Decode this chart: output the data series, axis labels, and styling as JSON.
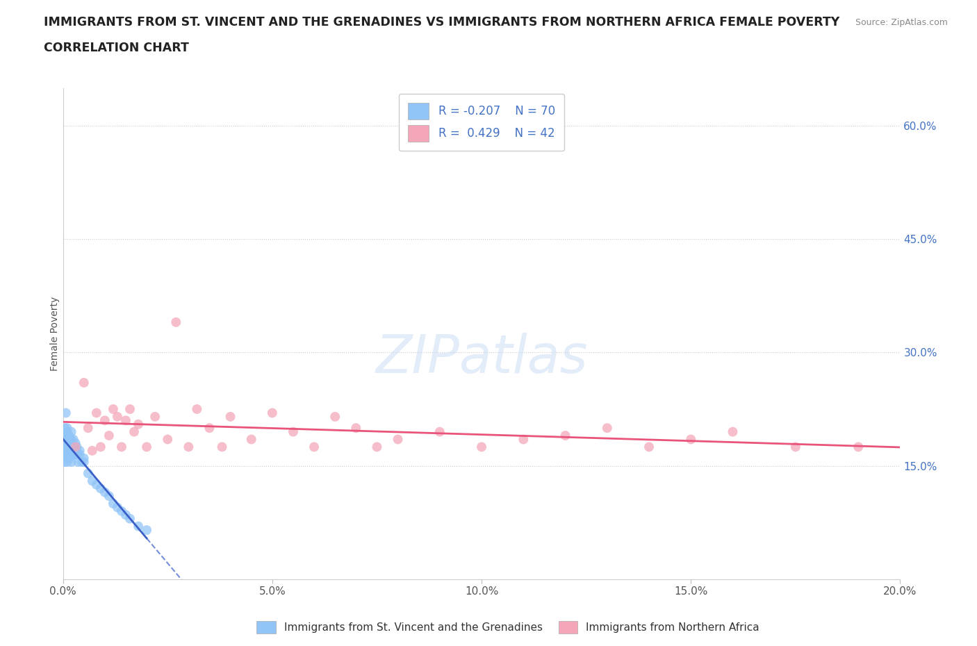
{
  "title_line1": "IMMIGRANTS FROM ST. VINCENT AND THE GRENADINES VS IMMIGRANTS FROM NORTHERN AFRICA FEMALE POVERTY",
  "title_line2": "CORRELATION CHART",
  "source": "Source: ZipAtlas.com",
  "ylabel": "Female Poverty",
  "xlim": [
    0.0,
    0.2
  ],
  "ylim": [
    0.0,
    0.65
  ],
  "xticks": [
    0.0,
    0.05,
    0.1,
    0.15,
    0.2
  ],
  "xtick_labels": [
    "0.0%",
    "5.0%",
    "10.0%",
    "15.0%",
    "20.0%"
  ],
  "ytick_labels": [
    "15.0%",
    "30.0%",
    "45.0%",
    "60.0%"
  ],
  "ytick_values": [
    0.15,
    0.3,
    0.45,
    0.6
  ],
  "hlines": [
    0.15,
    0.3,
    0.45,
    0.6
  ],
  "series1_color": "#92C5F7",
  "series2_color": "#F4A7B9",
  "series1_label": "Immigrants from St. Vincent and the Grenadines",
  "series2_label": "Immigrants from Northern Africa",
  "R1": -0.207,
  "N1": 70,
  "R2": 0.429,
  "N2": 42,
  "trend1_color": "#3A5FC8",
  "trend2_color": "#E8547A",
  "watermark": "ZIPatlas",
  "series1_x": [
    0.0002,
    0.0003,
    0.0004,
    0.0005,
    0.0005,
    0.0006,
    0.0006,
    0.0007,
    0.0007,
    0.0008,
    0.0008,
    0.0009,
    0.0009,
    0.001,
    0.001,
    0.001,
    0.001,
    0.001,
    0.001,
    0.0012,
    0.0012,
    0.0013,
    0.0013,
    0.0014,
    0.0014,
    0.0015,
    0.0015,
    0.0016,
    0.0016,
    0.0017,
    0.0017,
    0.0018,
    0.0018,
    0.0019,
    0.002,
    0.002,
    0.002,
    0.002,
    0.0022,
    0.0022,
    0.0024,
    0.0024,
    0.0025,
    0.0026,
    0.0027,
    0.0028,
    0.003,
    0.003,
    0.0032,
    0.0033,
    0.0035,
    0.0036,
    0.004,
    0.004,
    0.0045,
    0.005,
    0.005,
    0.006,
    0.007,
    0.008,
    0.009,
    0.01,
    0.011,
    0.012,
    0.013,
    0.014,
    0.015,
    0.016,
    0.018,
    0.02
  ],
  "series1_y": [
    0.175,
    0.165,
    0.155,
    0.2,
    0.17,
    0.185,
    0.16,
    0.22,
    0.18,
    0.19,
    0.17,
    0.165,
    0.175,
    0.185,
    0.195,
    0.2,
    0.175,
    0.165,
    0.155,
    0.18,
    0.17,
    0.185,
    0.175,
    0.19,
    0.175,
    0.16,
    0.17,
    0.175,
    0.185,
    0.17,
    0.175,
    0.165,
    0.18,
    0.165,
    0.175,
    0.185,
    0.195,
    0.155,
    0.175,
    0.17,
    0.165,
    0.175,
    0.185,
    0.175,
    0.165,
    0.175,
    0.18,
    0.165,
    0.17,
    0.175,
    0.165,
    0.155,
    0.17,
    0.165,
    0.155,
    0.16,
    0.155,
    0.14,
    0.13,
    0.125,
    0.12,
    0.115,
    0.11,
    0.1,
    0.095,
    0.09,
    0.085,
    0.08,
    0.07,
    0.065
  ],
  "series2_x": [
    0.003,
    0.005,
    0.006,
    0.007,
    0.008,
    0.009,
    0.01,
    0.011,
    0.012,
    0.013,
    0.014,
    0.015,
    0.016,
    0.017,
    0.018,
    0.02,
    0.022,
    0.025,
    0.027,
    0.03,
    0.032,
    0.035,
    0.038,
    0.04,
    0.045,
    0.05,
    0.055,
    0.06,
    0.065,
    0.07,
    0.075,
    0.08,
    0.09,
    0.1,
    0.11,
    0.12,
    0.13,
    0.14,
    0.15,
    0.16,
    0.175,
    0.19
  ],
  "series2_y": [
    0.175,
    0.26,
    0.2,
    0.17,
    0.22,
    0.175,
    0.21,
    0.19,
    0.225,
    0.215,
    0.175,
    0.21,
    0.225,
    0.195,
    0.205,
    0.175,
    0.215,
    0.185,
    0.34,
    0.175,
    0.225,
    0.2,
    0.175,
    0.215,
    0.185,
    0.22,
    0.195,
    0.175,
    0.215,
    0.2,
    0.175,
    0.185,
    0.195,
    0.175,
    0.185,
    0.19,
    0.2,
    0.175,
    0.185,
    0.195,
    0.175,
    0.175
  ]
}
